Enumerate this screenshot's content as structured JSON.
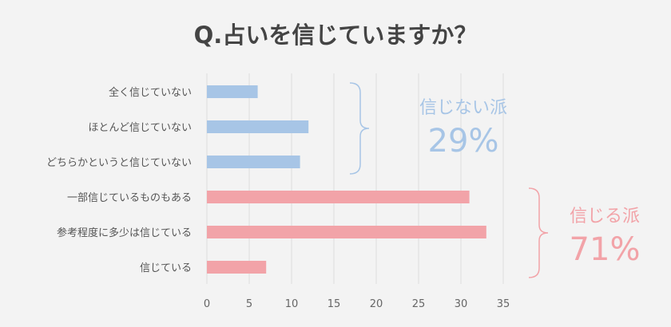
{
  "chart_data": {
    "type": "bar",
    "orientation": "horizontal",
    "title": "Q.占いを信じていますか？",
    "categories": [
      "全く信じていない",
      "ほとんど信じていない",
      "どちらかというと信じていない",
      "一部信じているものもある",
      "参考程度に多少は信じている",
      "信じている"
    ],
    "values": [
      6,
      12,
      11,
      31,
      33,
      7
    ],
    "bar_colors": [
      "#a7c5e6",
      "#a7c5e6",
      "#a7c5e6",
      "#f2a3a8",
      "#f2a3a8",
      "#f2a3a8"
    ],
    "xlim": [
      0,
      35
    ],
    "xticks": [
      0,
      5,
      10,
      15,
      20,
      25,
      30,
      35
    ],
    "grid": true,
    "groups": [
      {
        "label": "信じない派",
        "percent": "29%",
        "color": "#a7c5e6",
        "range": [
          0,
          2
        ]
      },
      {
        "label": "信じる派",
        "percent": "71%",
        "color": "#f2a3a8",
        "range": [
          3,
          5
        ]
      }
    ]
  }
}
